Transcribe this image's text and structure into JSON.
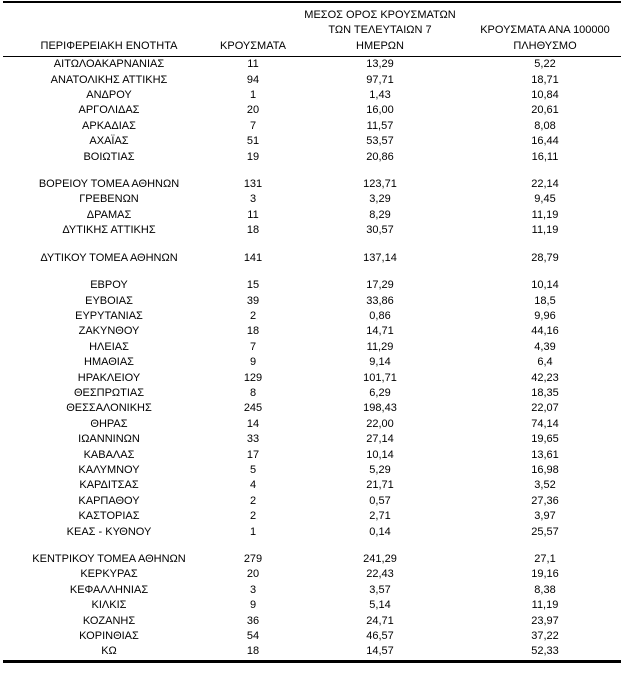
{
  "page": {
    "background_color": "#ffffff",
    "text_color": "#000000",
    "rule_color": "#000000"
  },
  "header": {
    "col1": [
      "ΠΕΡΙΦΕΡΕΙΑΚΗ ΕΝΟΤΗΤΑ"
    ],
    "col2": [
      "ΚΡΟΥΣΜΑΤΑ"
    ],
    "col3": [
      "ΜΕΣΟΣ ΟΡΟΣ ΚΡΟΥΣΜΑΤΩΝ",
      "ΤΩΝ ΤΕΛΕΥΤΑΙΩΝ 7",
      "ΗΜΕΡΩΝ"
    ],
    "col4": [
      "ΚΡΟΥΣΜΑΤΑ ΑΝΑ 100000",
      "ΠΛΗΘΥΣΜΟ"
    ]
  },
  "chart_data": {
    "type": "table",
    "columns": [
      "ΠΕΡΙΦΕΡΕΙΑΚΗ ΕΝΟΤΗΤΑ",
      "ΚΡΟΥΣΜΑΤΑ",
      "ΜΕΣΟΣ ΟΡΟΣ ΚΡΟΥΣΜΑΤΩΝ ΤΩΝ ΤΕΛΕΥΤΑΙΩΝ 7 ΗΜΕΡΩΝ",
      "ΚΡΟΥΣΜΑΤΑ ΑΝΑ 100000 ΠΛΗΘΥΣΜΟ"
    ],
    "groups": [
      {
        "rows": [
          [
            "ΑΙΤΩΛΟΑΚΑΡΝΑΝΙΑΣ",
            "11",
            "13,29",
            "5,22"
          ],
          [
            "ΑΝΑΤΟΛΙΚΗΣ ΑΤΤΙΚΗΣ",
            "94",
            "97,71",
            "18,71"
          ],
          [
            "ΑΝΔΡΟΥ",
            "1",
            "1,43",
            "10,84"
          ],
          [
            "ΑΡΓΟΛΙΔΑΣ",
            "20",
            "16,00",
            "20,61"
          ],
          [
            "ΑΡΚΑΔΙΑΣ",
            "7",
            "11,57",
            "8,08"
          ],
          [
            "ΑΧΑΪΑΣ",
            "51",
            "53,57",
            "16,44"
          ],
          [
            "ΒΟΙΩΤΙΑΣ",
            "19",
            "20,86",
            "16,11"
          ]
        ]
      },
      {
        "rows": [
          [
            "ΒΟΡΕΙΟΥ ΤΟΜΕΑ ΑΘΗΝΩΝ",
            "131",
            "123,71",
            "22,14"
          ],
          [
            "ΓΡΕΒΕΝΩΝ",
            "3",
            "3,29",
            "9,45"
          ],
          [
            "ΔΡΑΜΑΣ",
            "11",
            "8,29",
            "11,19"
          ],
          [
            "ΔΥΤΙΚΗΣ ΑΤΤΙΚΗΣ",
            "18",
            "30,57",
            "11,19"
          ]
        ]
      },
      {
        "rows": [
          [
            "ΔΥΤΙΚΟΥ ΤΟΜΕΑ ΑΘΗΝΩΝ",
            "141",
            "137,14",
            "28,79"
          ]
        ]
      },
      {
        "rows": [
          [
            "ΕΒΡΟΥ",
            "15",
            "17,29",
            "10,14"
          ],
          [
            "ΕΥΒΟΙΑΣ",
            "39",
            "33,86",
            "18,5"
          ],
          [
            "ΕΥΡΥΤΑΝΙΑΣ",
            "2",
            "0,86",
            "9,96"
          ],
          [
            "ΖΑΚΥΝΘΟΥ",
            "18",
            "14,71",
            "44,16"
          ],
          [
            "ΗΛΕΙΑΣ",
            "7",
            "11,29",
            "4,39"
          ],
          [
            "ΗΜΑΘΙΑΣ",
            "9",
            "9,14",
            "6,4"
          ],
          [
            "ΗΡΑΚΛΕΙΟΥ",
            "129",
            "101,71",
            "42,23"
          ],
          [
            "ΘΕΣΠΡΩΤΙΑΣ",
            "8",
            "6,29",
            "18,35"
          ],
          [
            "ΘΕΣΣΑΛΟΝΙΚΗΣ",
            "245",
            "198,43",
            "22,07"
          ],
          [
            "ΘΗΡΑΣ",
            "14",
            "22,00",
            "74,14"
          ],
          [
            "ΙΩΑΝΝΙΝΩΝ",
            "33",
            "27,14",
            "19,65"
          ],
          [
            "ΚΑΒΑΛΑΣ",
            "17",
            "10,14",
            "13,61"
          ],
          [
            "ΚΑΛΥΜΝΟΥ",
            "5",
            "5,29",
            "16,98"
          ],
          [
            "ΚΑΡΔΙΤΣΑΣ",
            "4",
            "21,71",
            "3,52"
          ],
          [
            "ΚΑΡΠΑΘΟΥ",
            "2",
            "0,57",
            "27,36"
          ],
          [
            "ΚΑΣΤΟΡΙΑΣ",
            "2",
            "2,71",
            "3,97"
          ],
          [
            "ΚΕΑΣ - ΚΥΘΝΟΥ",
            "1",
            "0,14",
            "25,57"
          ]
        ]
      },
      {
        "rows": [
          [
            "ΚΕΝΤΡΙΚΟΥ ΤΟΜΕΑ ΑΘΗΝΩΝ",
            "279",
            "241,29",
            "27,1"
          ],
          [
            "ΚΕΡΚΥΡΑΣ",
            "20",
            "22,43",
            "19,16"
          ],
          [
            "ΚΕΦΑΛΛΗΝΙΑΣ",
            "3",
            "3,57",
            "8,38"
          ],
          [
            "ΚΙΛΚΙΣ",
            "9",
            "5,14",
            "11,19"
          ],
          [
            "ΚΟΖΑΝΗΣ",
            "36",
            "24,71",
            "23,97"
          ],
          [
            "ΚΟΡΙΝΘΙΑΣ",
            "54",
            "46,57",
            "37,22"
          ],
          [
            "ΚΩ",
            "18",
            "14,57",
            "52,33"
          ]
        ]
      }
    ]
  }
}
